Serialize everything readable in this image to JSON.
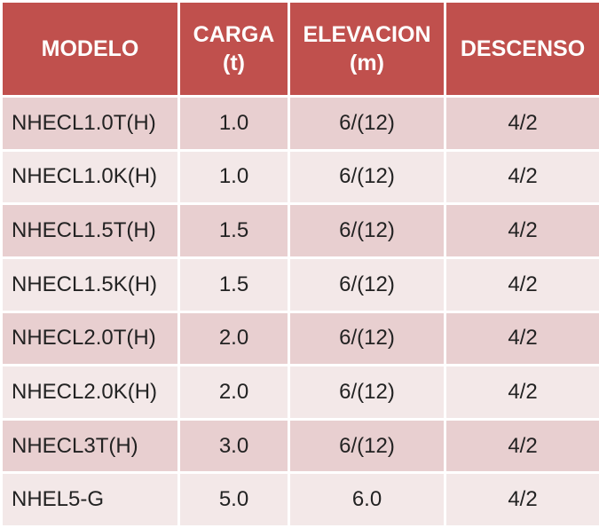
{
  "table": {
    "headers": [
      {
        "line1": "MODELO",
        "line2": ""
      },
      {
        "line1": "CARGA",
        "line2": "(t)"
      },
      {
        "line1": "ELEVACION",
        "line2": "(m)"
      },
      {
        "line1": "DESCENSO",
        "line2": ""
      }
    ],
    "rows": [
      {
        "model": "NHECL1.0T(H)",
        "carga": "1.0",
        "elevacion": "6/(12)",
        "descenso": "4/2"
      },
      {
        "model": "NHECL1.0K(H)",
        "carga": "1.0",
        "elevacion": "6/(12)",
        "descenso": "4/2"
      },
      {
        "model": "NHECL1.5T(H)",
        "carga": "1.5",
        "elevacion": "6/(12)",
        "descenso": "4/2"
      },
      {
        "model": "NHECL1.5K(H)",
        "carga": "1.5",
        "elevacion": "6/(12)",
        "descenso": "4/2"
      },
      {
        "model": "NHECL2.0T(H)",
        "carga": "2.0",
        "elevacion": "6/(12)",
        "descenso": "4/2"
      },
      {
        "model": "NHECL2.0K(H)",
        "carga": "2.0",
        "elevacion": "6/(12)",
        "descenso": "4/2"
      },
      {
        "model": "NHECL3T(H)",
        "carga": "3.0",
        "elevacion": "6/(12)",
        "descenso": "4/2"
      },
      {
        "model": "NHEL5-G",
        "carga": "5.0",
        "elevacion": "6.0",
        "descenso": "4/2"
      }
    ],
    "colors": {
      "header_bg": "#c0504d",
      "header_text": "#ffffff",
      "row_odd_bg": "#e8cfd0",
      "row_even_bg": "#f3e8e8"
    }
  }
}
